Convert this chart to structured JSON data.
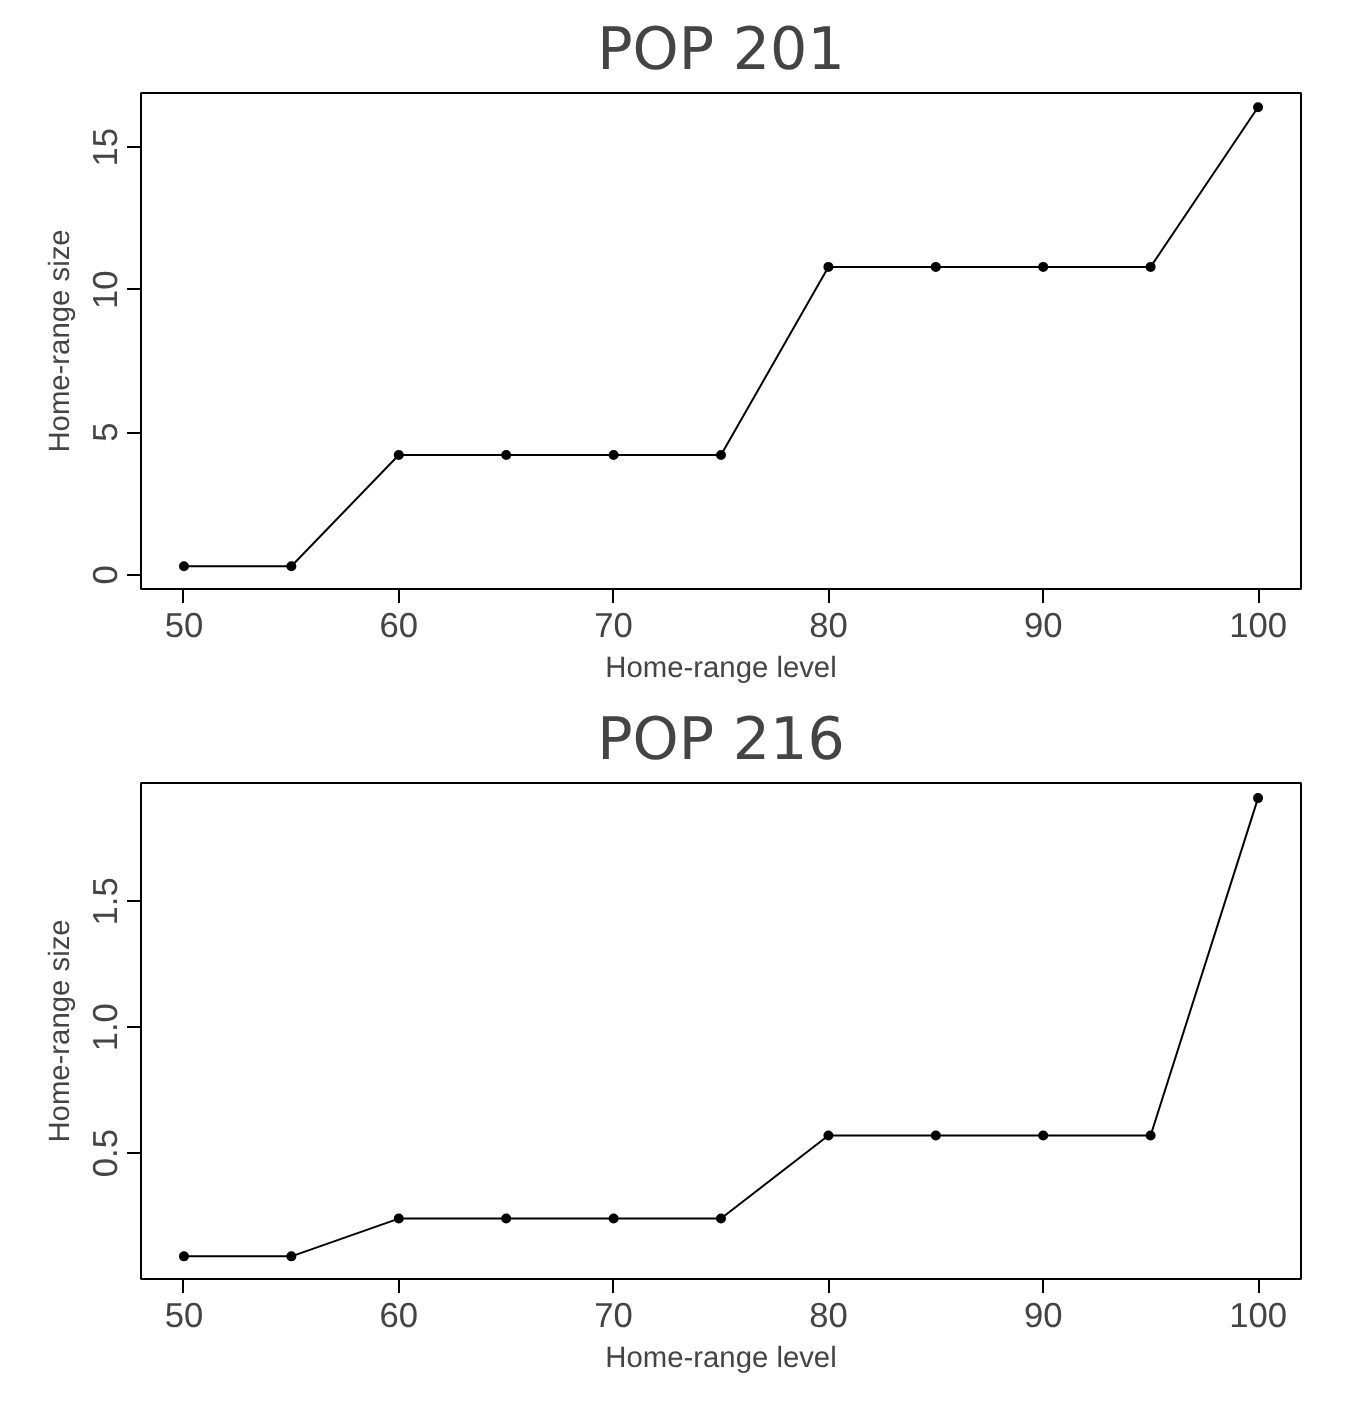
{
  "chart_data": [
    {
      "type": "line",
      "title": "POP 201",
      "xlabel": "Home-range level",
      "ylabel": "Home-range size",
      "x": [
        50,
        55,
        60,
        65,
        70,
        75,
        80,
        85,
        90,
        95,
        100
      ],
      "series": [
        {
          "color": "#000000",
          "values": [
            0.3,
            0.3,
            4.2,
            4.2,
            4.2,
            4.2,
            10.8,
            10.8,
            10.8,
            10.8,
            16.4
          ]
        }
      ],
      "xlim": [
        48,
        102
      ],
      "ylim": [
        -0.5,
        16.9
      ],
      "xticks": [
        50,
        60,
        70,
        80,
        90,
        100
      ],
      "yticks": [
        0,
        5,
        10,
        15
      ],
      "marker": "circle"
    },
    {
      "type": "line",
      "title": "POP 216",
      "xlabel": "Home-range level",
      "ylabel": "Home-range size",
      "x": [
        50,
        55,
        60,
        65,
        70,
        75,
        80,
        85,
        90,
        95,
        100
      ],
      "series": [
        {
          "color": "#000000",
          "values": [
            0.09,
            0.09,
            0.24,
            0.24,
            0.24,
            0.24,
            0.57,
            0.57,
            0.57,
            0.57,
            1.91
          ]
        }
      ],
      "xlim": [
        48,
        102
      ],
      "ylim": [
        0.0,
        1.97
      ],
      "xticks": [
        50,
        60,
        70,
        80,
        90,
        100
      ],
      "yticks": [
        0.5,
        {
          "value": 1,
          "label": "1.0"
        },
        1.5
      ],
      "marker": "circle"
    }
  ]
}
